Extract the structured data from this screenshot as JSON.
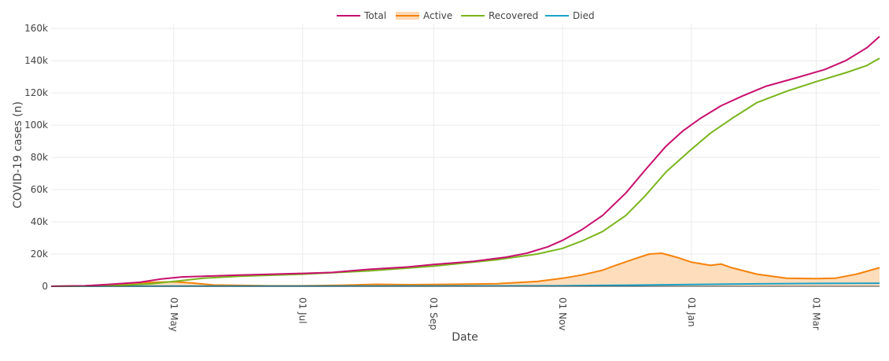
{
  "chart_data": {
    "type": "line",
    "xlabel": "Date",
    "ylabel": "COVID-19 cases (n)",
    "legend": [
      "Total",
      "Active",
      "Recovered",
      "Died"
    ],
    "legend_position": "top-center",
    "grid": true,
    "x_range": [
      "2020-03-04",
      "2021-03-31"
    ],
    "y_range": [
      0,
      163000
    ],
    "y_ticks": [
      "0",
      "20k",
      "40k",
      "60k",
      "80k",
      "100k",
      "120k",
      "140k",
      "160k"
    ],
    "y_tick_values": [
      0,
      20000,
      40000,
      60000,
      80000,
      100000,
      120000,
      140000,
      160000
    ],
    "x_ticks": [
      "01 May",
      "01 Jul",
      "01 Sep",
      "01 Nov",
      "01 Jan",
      "01 Mar"
    ],
    "x_tick_dates": [
      "2020-05-01",
      "2020-07-01",
      "2020-09-01",
      "2020-11-01",
      "2021-01-01",
      "2021-03-01"
    ],
    "series": [
      {
        "name": "Total",
        "color": "#c8106e",
        "fill": false,
        "points": [
          [
            "2020-03-04",
            0
          ],
          [
            "2020-03-20",
            300
          ],
          [
            "2020-04-01",
            1200
          ],
          [
            "2020-04-15",
            2500
          ],
          [
            "2020-04-25",
            4500
          ],
          [
            "2020-05-05",
            5800
          ],
          [
            "2020-06-01",
            7000
          ],
          [
            "2020-07-01",
            8000
          ],
          [
            "2020-07-15",
            8600
          ],
          [
            "2020-08-01",
            10500
          ],
          [
            "2020-08-20",
            12000
          ],
          [
            "2020-09-01",
            13500
          ],
          [
            "2020-09-20",
            15500
          ],
          [
            "2020-10-05",
            18000
          ],
          [
            "2020-10-15",
            20500
          ],
          [
            "2020-10-25",
            24500
          ],
          [
            "2020-11-01",
            28500
          ],
          [
            "2020-11-10",
            35000
          ],
          [
            "2020-11-20",
            44000
          ],
          [
            "2020-12-01",
            58000
          ],
          [
            "2020-12-10",
            72000
          ],
          [
            "2020-12-20",
            87000
          ],
          [
            "2020-12-28",
            96500
          ],
          [
            "2021-01-05",
            104000
          ],
          [
            "2021-01-15",
            112000
          ],
          [
            "2021-01-25",
            118000
          ],
          [
            "2021-02-05",
            124000
          ],
          [
            "2021-02-20",
            129500
          ],
          [
            "2021-03-05",
            134500
          ],
          [
            "2021-03-15",
            140000
          ],
          [
            "2021-03-25",
            148000
          ],
          [
            "2021-03-31",
            155000
          ]
        ]
      },
      {
        "name": "Active",
        "color": "#f5820a",
        "fill": true,
        "fill_color": "#fdd9b5",
        "points": [
          [
            "2020-03-04",
            0
          ],
          [
            "2020-03-20",
            300
          ],
          [
            "2020-04-01",
            1000
          ],
          [
            "2020-04-15",
            2200
          ],
          [
            "2020-05-01",
            2800
          ],
          [
            "2020-05-10",
            2000
          ],
          [
            "2020-05-20",
            800
          ],
          [
            "2020-06-15",
            300
          ],
          [
            "2020-07-01",
            300
          ],
          [
            "2020-07-20",
            700
          ],
          [
            "2020-08-05",
            1200
          ],
          [
            "2020-08-20",
            1000
          ],
          [
            "2020-09-10",
            1200
          ],
          [
            "2020-10-01",
            1600
          ],
          [
            "2020-10-20",
            3000
          ],
          [
            "2020-11-01",
            5000
          ],
          [
            "2020-11-10",
            7000
          ],
          [
            "2020-11-20",
            10000
          ],
          [
            "2020-11-25",
            12500
          ],
          [
            "2020-12-05",
            17000
          ],
          [
            "2020-12-12",
            20000
          ],
          [
            "2020-12-18",
            20500
          ],
          [
            "2020-12-25",
            18000
          ],
          [
            "2021-01-01",
            15000
          ],
          [
            "2021-01-10",
            13000
          ],
          [
            "2021-01-15",
            13800
          ],
          [
            "2021-01-20",
            11500
          ],
          [
            "2021-02-01",
            7500
          ],
          [
            "2021-02-15",
            5000
          ],
          [
            "2021-03-01",
            4800
          ],
          [
            "2021-03-10",
            5000
          ],
          [
            "2021-03-20",
            7500
          ],
          [
            "2021-03-31",
            11500
          ]
        ]
      },
      {
        "name": "Recovered",
        "color": "#7ab51d",
        "fill": false,
        "points": [
          [
            "2020-03-04",
            0
          ],
          [
            "2020-04-01",
            300
          ],
          [
            "2020-04-20",
            1500
          ],
          [
            "2020-05-01",
            3000
          ],
          [
            "2020-05-15",
            5000
          ],
          [
            "2020-06-01",
            6200
          ],
          [
            "2020-07-01",
            7500
          ],
          [
            "2020-08-01",
            9500
          ],
          [
            "2020-09-01",
            12500
          ],
          [
            "2020-10-01",
            16500
          ],
          [
            "2020-10-20",
            20000
          ],
          [
            "2020-11-01",
            23500
          ],
          [
            "2020-11-10",
            28000
          ],
          [
            "2020-11-20",
            34000
          ],
          [
            "2020-12-01",
            44000
          ],
          [
            "2020-12-10",
            56000
          ],
          [
            "2020-12-20",
            71000
          ],
          [
            "2021-01-01",
            85000
          ],
          [
            "2021-01-10",
            95000
          ],
          [
            "2021-01-20",
            104000
          ],
          [
            "2021-02-01",
            114000
          ],
          [
            "2021-02-15",
            121000
          ],
          [
            "2021-03-01",
            127000
          ],
          [
            "2021-03-15",
            132500
          ],
          [
            "2021-03-25",
            137000
          ],
          [
            "2021-03-31",
            141500
          ]
        ]
      },
      {
        "name": "Died",
        "color": "#1aa3c9",
        "fill": false,
        "points": [
          [
            "2020-03-04",
            0
          ],
          [
            "2020-05-01",
            100
          ],
          [
            "2020-07-01",
            150
          ],
          [
            "2020-09-01",
            200
          ],
          [
            "2020-11-01",
            300
          ],
          [
            "2020-12-01",
            700
          ],
          [
            "2021-01-01",
            1100
          ],
          [
            "2021-02-01",
            1500
          ],
          [
            "2021-03-01",
            1750
          ],
          [
            "2021-03-31",
            1900
          ]
        ]
      }
    ]
  }
}
